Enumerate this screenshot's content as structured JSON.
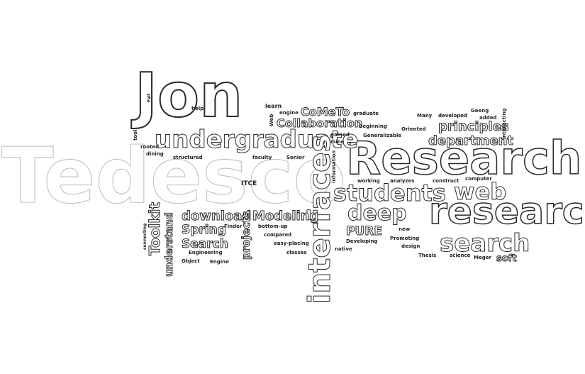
{
  "words": [
    "Jon",
    "Tedesco",
    "Research",
    "research",
    "undergraduate",
    "interfaces",
    "students",
    "web",
    "search",
    "deep",
    "principles",
    "department",
    "Collaboration",
    "CoMeTo",
    "download",
    "Modeling",
    "Toolkit",
    "Spring",
    "Search",
    "PURE",
    "understand",
    "projects",
    "ITCE",
    "information",
    "help",
    "learn",
    "engine",
    "graduate",
    "Beginning",
    "Many",
    "developed",
    "Geeng",
    "added",
    "Oriented",
    "Generalizable",
    "gained",
    "mine",
    "working",
    "analyzes",
    "construct",
    "computer",
    "interacting",
    "Object",
    "Engine",
    "Engineering",
    "classes",
    "bottom-up",
    "compared",
    "easy-placing",
    "Developing",
    "native",
    "Promoting",
    "design",
    "new",
    "Meger",
    "science",
    "Thesis",
    "soft",
    "rooted",
    "structured",
    "faculty",
    "Senior",
    "dining",
    "tool",
    "connecting",
    "Finder",
    "Web",
    "Fall"
  ]
}
